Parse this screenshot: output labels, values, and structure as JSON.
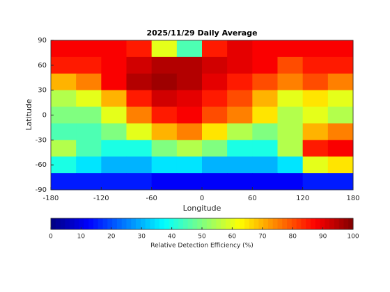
{
  "chart_data": {
    "type": "heatmap",
    "title": "2025/11/29 Daily Average",
    "x_label": "Longitude",
    "y_label": "Latitude",
    "colorbar_label": "Relative Detection Efficiency (%)",
    "colormap": "jet",
    "x": [
      -165,
      -135,
      -105,
      -75,
      -45,
      -15,
      15,
      45,
      75,
      105,
      135,
      165
    ],
    "y": [
      80,
      60,
      40,
      20,
      0,
      -20,
      -40,
      -60,
      -80
    ],
    "z": [
      [
        88,
        88,
        88,
        85,
        60,
        45,
        85,
        90,
        88,
        88,
        88,
        88
      ],
      [
        85,
        85,
        88,
        92,
        95,
        95,
        92,
        90,
        88,
        80,
        85,
        85
      ],
      [
        70,
        75,
        88,
        95,
        97,
        95,
        90,
        85,
        80,
        75,
        80,
        75
      ],
      [
        55,
        60,
        70,
        85,
        92,
        90,
        85,
        80,
        70,
        60,
        65,
        60
      ],
      [
        50,
        50,
        60,
        75,
        85,
        88,
        80,
        75,
        65,
        55,
        60,
        55
      ],
      [
        45,
        45,
        50,
        60,
        70,
        75,
        65,
        55,
        50,
        55,
        70,
        75
      ],
      [
        55,
        45,
        40,
        40,
        50,
        55,
        50,
        40,
        40,
        55,
        85,
        88
      ],
      [
        40,
        35,
        30,
        30,
        35,
        35,
        30,
        30,
        30,
        35,
        60,
        65
      ],
      [
        15,
        15,
        15,
        15,
        12,
        12,
        12,
        12,
        12,
        12,
        15,
        15
      ]
    ],
    "xlim": [
      -180,
      180
    ],
    "xticks": [
      -180,
      -120,
      -60,
      0,
      60,
      120,
      180
    ],
    "ylim": [
      -90,
      90
    ],
    "yticks": [
      -90,
      -60,
      -30,
      0,
      30,
      60,
      90
    ],
    "clim": [
      0,
      100
    ],
    "cticks": [
      0,
      10,
      20,
      30,
      40,
      50,
      60,
      70,
      80,
      90,
      100
    ]
  }
}
